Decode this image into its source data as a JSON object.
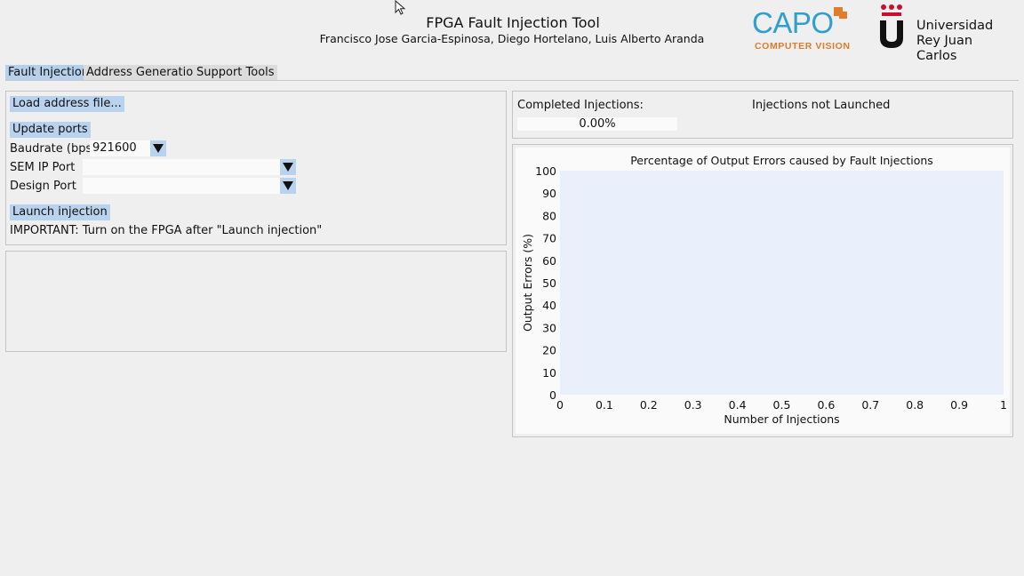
{
  "header": {
    "title": "FPGA Fault Injection Tool",
    "authors": "Francisco Jose Garcia-Espinosa, Diego Hortelano, Luis Alberto Aranda"
  },
  "logos": {
    "capo_text": "CAPO",
    "capo_sub": "COMPUTER VISION",
    "urjc_line1": "Universidad",
    "urjc_line2": "Rey Juan Carlos",
    "capo_color": "#2f9fd0",
    "capo_accent": "#e07c2a",
    "urjc_red": "#c8102e"
  },
  "tabs": [
    {
      "label": "Fault Injection",
      "active": true
    },
    {
      "label": "Address Generation",
      "active": false
    },
    {
      "label": "Support Tools",
      "active": false
    }
  ],
  "controls": {
    "load_address_label": "Load address file...",
    "update_ports_label": "Update ports",
    "baudrate_label": "Baudrate (bps)",
    "baudrate_value": "921600",
    "sem_ip_label": "SEM IP Port",
    "sem_ip_value": "",
    "design_port_label": "Design Port",
    "design_port_value": "",
    "launch_label": "Launch injection",
    "important_note": "IMPORTANT: Turn on the FPGA after \"Launch injection\""
  },
  "status": {
    "completed_label": "Completed Injections:",
    "progress_text": "0.00%",
    "progress_value": 0,
    "launch_status": "Injections not Launched"
  },
  "chart_data": {
    "type": "line",
    "title": "Percentage of Output Errors caused by Fault Injections",
    "xlabel": "Number of Injections",
    "ylabel": "Output Errors (%)",
    "xlim": [
      0,
      1
    ],
    "ylim": [
      0,
      100
    ],
    "x_ticks": [
      "0",
      "0.1",
      "0.2",
      "0.3",
      "0.4",
      "0.5",
      "0.6",
      "0.7",
      "0.8",
      "0.9",
      "1"
    ],
    "y_ticks": [
      "0",
      "10",
      "20",
      "30",
      "40",
      "50",
      "60",
      "70",
      "80",
      "90",
      "100"
    ],
    "series": [],
    "plot_background": "#eaf0fb",
    "grid": false
  }
}
